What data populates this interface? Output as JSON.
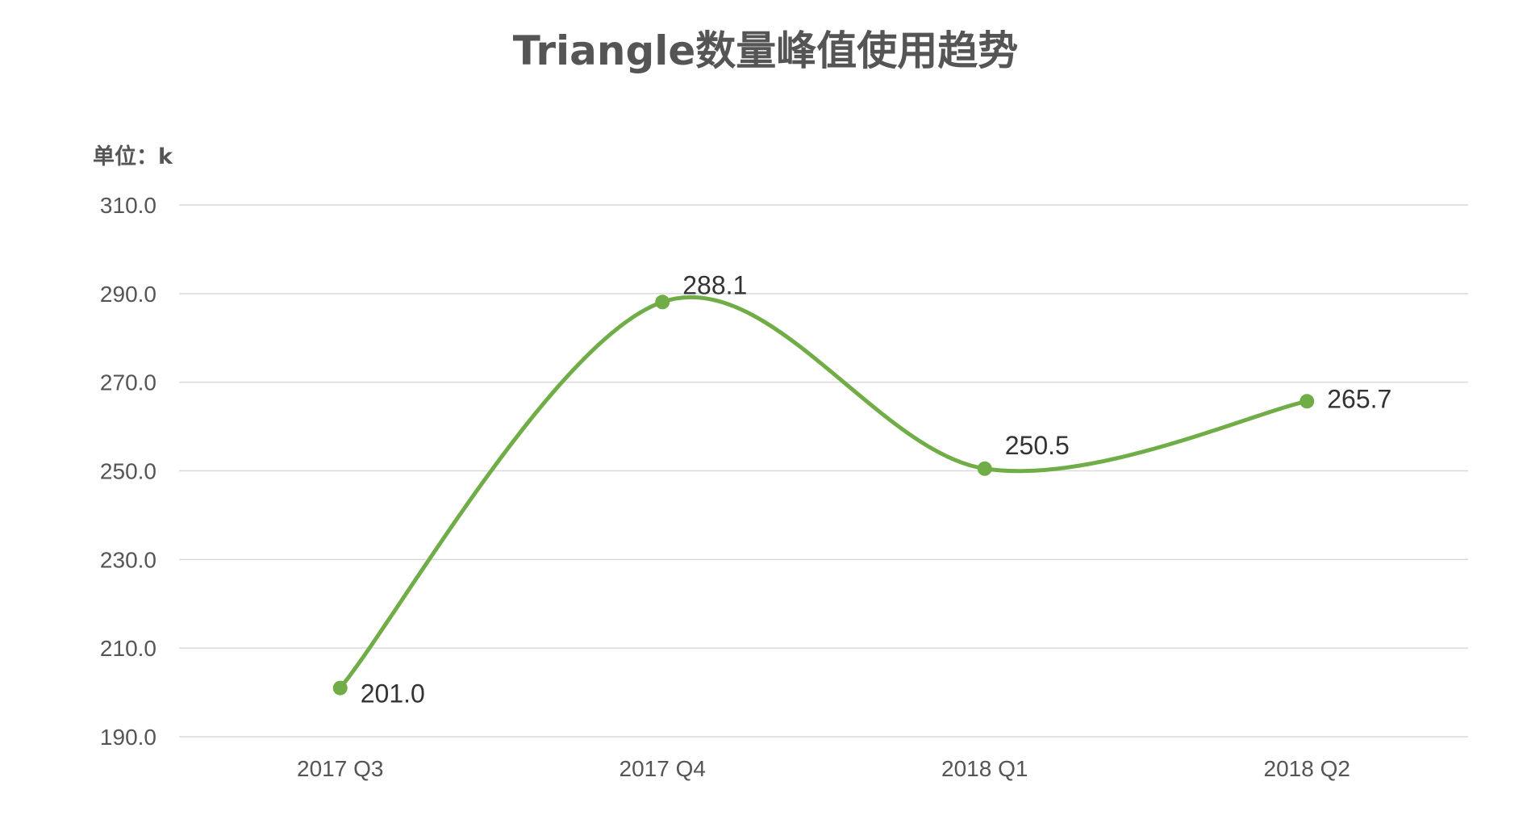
{
  "chart_data": {
    "type": "line",
    "title": "Triangle数量峰值使用趋势",
    "unit_label": "单位：k",
    "categories": [
      "2017 Q3",
      "2017 Q4",
      "2018 Q1",
      "2018 Q2"
    ],
    "series": [
      {
        "values": [
          201.0,
          288.1,
          250.5,
          265.7
        ],
        "color": "#70ad47"
      }
    ],
    "data_labels": [
      "201.0",
      "288.1",
      "250.5",
      "265.7"
    ],
    "y_ticks": [
      "190.0",
      "210.0",
      "230.0",
      "250.0",
      "270.0",
      "290.0",
      "310.0"
    ],
    "ylim": [
      190,
      310
    ],
    "smooth": true,
    "grid": true,
    "legend": "none"
  }
}
